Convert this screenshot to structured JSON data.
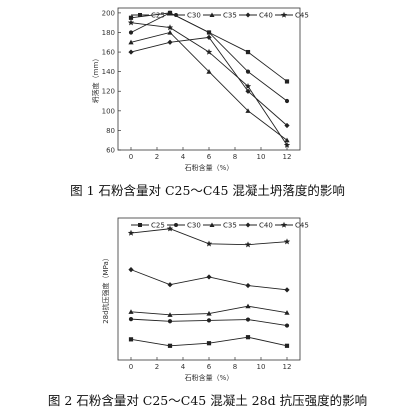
{
  "chart_data": [
    {
      "type": "line",
      "title": "",
      "xlabel": "石粉含量（%）",
      "ylabel": "坍落度（mm）",
      "x": [
        0,
        3,
        6,
        9,
        12
      ],
      "xticks": [
        0,
        2,
        4,
        6,
        8,
        10,
        12
      ],
      "yticks": [
        60,
        80,
        100,
        120,
        140,
        160,
        180,
        200
      ],
      "xlim": [
        -1,
        13
      ],
      "ylim": [
        60,
        205
      ],
      "grid": false,
      "legend_position": "top",
      "series": [
        {
          "name": "C25",
          "marker": "square",
          "values": [
            195,
            200,
            180,
            160,
            130
          ]
        },
        {
          "name": "C30",
          "marker": "circle",
          "values": [
            180,
            200,
            180,
            140,
            110
          ]
        },
        {
          "name": "C35",
          "marker": "triangle",
          "values": [
            170,
            180,
            140,
            100,
            70
          ]
        },
        {
          "name": "C40",
          "marker": "diamond",
          "values": [
            160,
            170,
            175,
            120,
            85
          ]
        },
        {
          "name": "C45",
          "marker": "star",
          "values": [
            190,
            185,
            160,
            125,
            65
          ]
        }
      ],
      "caption": "图 1  石粉含量对 C25～C45 混凝土坍落度的影响"
    },
    {
      "type": "line",
      "title": "",
      "xlabel": "石粉含量（%）",
      "ylabel": "28d抗压强度（MPa）",
      "x": [
        0,
        3,
        6,
        9,
        12
      ],
      "xticks": [
        0,
        2,
        4,
        6,
        8,
        10,
        12
      ],
      "xlim": [
        -1,
        13
      ],
      "ylim": [
        27,
        60
      ],
      "grid": false,
      "legend_position": "top",
      "series": [
        {
          "name": "C25",
          "marker": "square",
          "values": [
            31.8,
            30.3,
            30.9,
            32.3,
            30.3
          ]
        },
        {
          "name": "C30",
          "marker": "circle",
          "values": [
            36.5,
            36.0,
            36.2,
            36.4,
            35.0
          ]
        },
        {
          "name": "C35",
          "marker": "triangle",
          "values": [
            38.2,
            37.5,
            37.8,
            39.5,
            38.0
          ]
        },
        {
          "name": "C40",
          "marker": "diamond",
          "values": [
            48.0,
            44.5,
            46.3,
            44.3,
            43.3
          ]
        },
        {
          "name": "C45",
          "marker": "star",
          "values": [
            56.5,
            57.5,
            54.0,
            53.8,
            54.5
          ]
        }
      ],
      "caption": "图 2  石粉含量对 C25～C45 混凝土 28d 抗压强度的影响"
    }
  ]
}
